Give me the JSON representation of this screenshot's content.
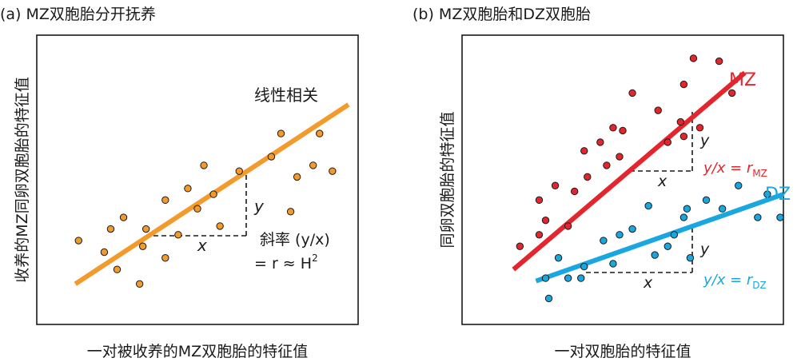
{
  "colors": {
    "orange": "#F39A2C",
    "mz": "#E3262E",
    "dz": "#1AA7E0",
    "ink": "#1a1a1a"
  },
  "chart_data": [
    {
      "type": "scatter",
      "title": "(a) MZ双胞胎分开抚养",
      "xlabel": "一对被收养的MZ双胞胎的特征值",
      "ylabel": "收养的MZ同卵双胞胎的特征值",
      "xlim": [
        0,
        100
      ],
      "ylim": [
        0,
        100
      ],
      "annotations": {
        "relation_label": "线性相关",
        "slope_text": "斜率 (y/x)",
        "formula_prefix": "= r ≈ H",
        "formula_exp": "2",
        "x_mark": "x",
        "y_mark": "y"
      },
      "series": [
        {
          "color": "#F39A2C",
          "fit": {
            "x": [
              12,
              97
            ],
            "y": [
              14,
              76
            ]
          },
          "points": [
            {
              "x": 13,
              "y": 29
            },
            {
              "x": 21,
              "y": 25
            },
            {
              "x": 25,
              "y": 19
            },
            {
              "x": 27,
              "y": 37
            },
            {
              "x": 23,
              "y": 33
            },
            {
              "x": 34,
              "y": 33
            },
            {
              "x": 33,
              "y": 27
            },
            {
              "x": 40,
              "y": 23
            },
            {
              "x": 40,
              "y": 43
            },
            {
              "x": 44,
              "y": 31
            },
            {
              "x": 47,
              "y": 47
            },
            {
              "x": 52,
              "y": 55
            },
            {
              "x": 50,
              "y": 40
            },
            {
              "x": 55,
              "y": 45
            },
            {
              "x": 57,
              "y": 34
            },
            {
              "x": 63,
              "y": 53
            },
            {
              "x": 76,
              "y": 66
            },
            {
              "x": 81,
              "y": 51
            },
            {
              "x": 79,
              "y": 39
            },
            {
              "x": 73,
              "y": 58
            },
            {
              "x": 88,
              "y": 66
            },
            {
              "x": 86,
              "y": 55
            },
            {
              "x": 92,
              "y": 53
            },
            {
              "x": 32,
              "y": 14
            }
          ]
        }
      ]
    },
    {
      "type": "scatter",
      "title": "(b) MZ双胞胎和DZ双胞胎",
      "xlabel": "一对双胞胎的特征值",
      "ylabel": "同卵双胞胎的特征值",
      "xlim": [
        0,
        100
      ],
      "ylim": [
        0,
        100
      ],
      "annotations": {
        "mz_ratio_prefix": "y/x = r",
        "mz_ratio_sub": "MZ",
        "dz_ratio_prefix": "y/x = r",
        "dz_ratio_sub": "DZ",
        "x_mark_mz": "x",
        "y_mark_mz": "y",
        "x_mark_dz": "x",
        "y_mark_dz": "y"
      },
      "series": [
        {
          "name": "MZ",
          "color": "#E3262E",
          "fit": {
            "x": [
              16,
              88
            ],
            "y": [
              19,
              87
            ]
          },
          "points": [
            {
              "x": 18,
              "y": 27
            },
            {
              "x": 24,
              "y": 43
            },
            {
              "x": 26,
              "y": 36
            },
            {
              "x": 24,
              "y": 31
            },
            {
              "x": 29,
              "y": 48
            },
            {
              "x": 33,
              "y": 34
            },
            {
              "x": 35,
              "y": 46
            },
            {
              "x": 38,
              "y": 60
            },
            {
              "x": 39,
              "y": 51
            },
            {
              "x": 43,
              "y": 63
            },
            {
              "x": 45,
              "y": 55
            },
            {
              "x": 47,
              "y": 68
            },
            {
              "x": 49,
              "y": 58
            },
            {
              "x": 50,
              "y": 67
            },
            {
              "x": 53,
              "y": 80
            },
            {
              "x": 61,
              "y": 74
            },
            {
              "x": 64,
              "y": 63
            },
            {
              "x": 69,
              "y": 83
            },
            {
              "x": 68,
              "y": 70
            },
            {
              "x": 74,
              "y": 68
            },
            {
              "x": 72,
              "y": 92
            },
            {
              "x": 80,
              "y": 91
            },
            {
              "x": 84,
              "y": 80
            },
            {
              "x": 69,
              "y": 65
            }
          ]
        },
        {
          "name": "DZ",
          "color": "#1AA7E0",
          "fit": {
            "x": [
              23,
              100
            ],
            "y": [
              15,
              45
            ]
          },
          "points": [
            {
              "x": 26,
              "y": 16
            },
            {
              "x": 27,
              "y": 9
            },
            {
              "x": 30,
              "y": 23
            },
            {
              "x": 33,
              "y": 16
            },
            {
              "x": 37,
              "y": 16
            },
            {
              "x": 38,
              "y": 20
            },
            {
              "x": 44,
              "y": 29
            },
            {
              "x": 47,
              "y": 21
            },
            {
              "x": 49,
              "y": 31
            },
            {
              "x": 53,
              "y": 33
            },
            {
              "x": 58,
              "y": 41
            },
            {
              "x": 60,
              "y": 24
            },
            {
              "x": 64,
              "y": 27
            },
            {
              "x": 66,
              "y": 31
            },
            {
              "x": 69,
              "y": 37
            },
            {
              "x": 71,
              "y": 23
            },
            {
              "x": 76,
              "y": 43
            },
            {
              "x": 81,
              "y": 40
            },
            {
              "x": 86,
              "y": 48
            },
            {
              "x": 92,
              "y": 37
            },
            {
              "x": 95,
              "y": 45
            },
            {
              "x": 99,
              "y": 37
            },
            {
              "x": 70,
              "y": 40
            }
          ]
        }
      ]
    }
  ]
}
